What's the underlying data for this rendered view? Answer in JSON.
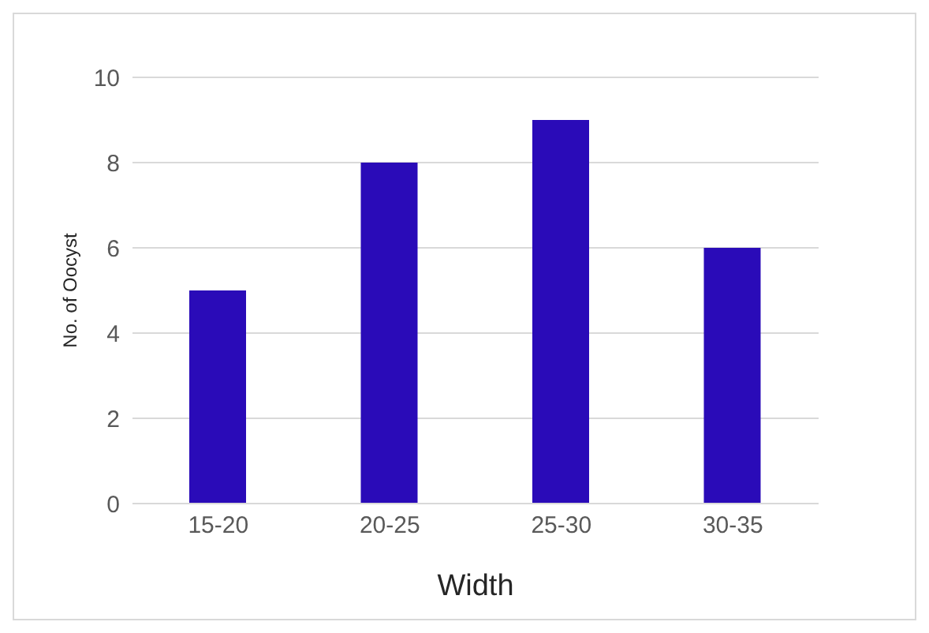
{
  "chart_data": {
    "type": "bar",
    "xlabel": "Width",
    "ylabel": "No. of Oocyst",
    "categories": [
      "15-20",
      "20-25",
      "25-30",
      "30-35"
    ],
    "values": [
      5,
      8,
      9,
      6
    ],
    "color": "#2a0bb8",
    "ylim": [
      0,
      10
    ],
    "yticks": [
      0,
      2,
      4,
      6,
      8,
      10
    ],
    "grid": "y"
  }
}
